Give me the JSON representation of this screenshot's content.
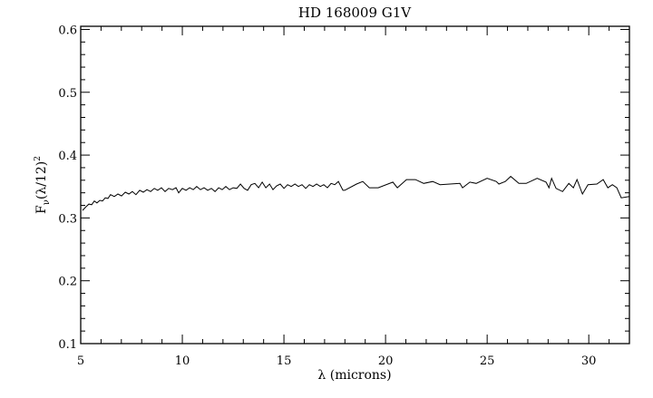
{
  "chart_data": {
    "type": "line",
    "title": "HD 168009 G1V",
    "xlabel": "λ (microns)",
    "ylabel": {
      "main": "F",
      "sub": "ν",
      "rest": "(λ/12)",
      "sup": "2"
    },
    "xlim": [
      5,
      32
    ],
    "ylim": [
      0.1,
      0.605
    ],
    "x_major_ticks": [
      5,
      10,
      15,
      20,
      25,
      30
    ],
    "x_tick_labels": [
      "5",
      "10",
      "15",
      "20",
      "25",
      "30"
    ],
    "x_minor_step": 1,
    "y_major_ticks": [
      0.1,
      0.2,
      0.3,
      0.4,
      0.5,
      0.6
    ],
    "y_tick_labels": [
      "0.1",
      "0.2",
      "0.3",
      "0.4",
      "0.5",
      "0.6"
    ],
    "y_minor_step": 0.02,
    "grid": false,
    "series": [
      {
        "name": "HD 168009",
        "color": "#000000",
        "x": [
          5.09,
          5.27,
          5.4,
          5.54,
          5.67,
          5.8,
          5.94,
          6.07,
          6.21,
          6.34,
          6.47,
          6.65,
          6.83,
          7.01,
          7.19,
          7.37,
          7.54,
          7.72,
          7.9,
          8.08,
          8.26,
          8.44,
          8.62,
          8.79,
          8.97,
          9.15,
          9.33,
          9.51,
          9.69,
          9.82,
          10.0,
          10.18,
          10.36,
          10.54,
          10.71,
          10.89,
          11.07,
          11.25,
          11.43,
          11.61,
          11.79,
          11.96,
          12.14,
          12.32,
          12.5,
          12.68,
          12.86,
          13.04,
          13.21,
          13.39,
          13.57,
          13.75,
          13.93,
          14.11,
          14.29,
          14.46,
          14.64,
          14.82,
          15.0,
          15.18,
          15.36,
          15.54,
          15.71,
          15.89,
          16.07,
          16.25,
          16.43,
          16.61,
          16.79,
          16.96,
          17.14,
          17.32,
          17.5,
          17.68,
          17.9,
          17.99,
          18.57,
          18.88,
          19.2,
          19.64,
          20.36,
          20.58,
          21.03,
          21.47,
          21.88,
          22.32,
          22.68,
          23.66,
          23.79,
          24.15,
          24.46,
          25.0,
          25.45,
          25.58,
          25.89,
          26.16,
          26.56,
          26.92,
          27.46,
          27.9,
          28.04,
          28.17,
          28.39,
          28.71,
          29.02,
          29.24,
          29.42,
          29.69,
          29.96,
          30.4,
          30.71,
          30.94,
          31.16,
          31.38,
          31.6,
          32.0
        ],
        "y": [
          0.312,
          0.318,
          0.322,
          0.321,
          0.327,
          0.324,
          0.328,
          0.327,
          0.332,
          0.331,
          0.337,
          0.334,
          0.338,
          0.335,
          0.341,
          0.338,
          0.342,
          0.337,
          0.344,
          0.341,
          0.345,
          0.342,
          0.347,
          0.344,
          0.348,
          0.342,
          0.347,
          0.345,
          0.348,
          0.34,
          0.347,
          0.344,
          0.348,
          0.345,
          0.35,
          0.345,
          0.348,
          0.344,
          0.347,
          0.342,
          0.348,
          0.345,
          0.35,
          0.345,
          0.348,
          0.347,
          0.354,
          0.347,
          0.344,
          0.353,
          0.355,
          0.348,
          0.357,
          0.348,
          0.354,
          0.345,
          0.351,
          0.354,
          0.347,
          0.353,
          0.35,
          0.354,
          0.35,
          0.353,
          0.347,
          0.353,
          0.35,
          0.354,
          0.35,
          0.353,
          0.348,
          0.355,
          0.353,
          0.358,
          0.344,
          0.344,
          0.354,
          0.358,
          0.348,
          0.348,
          0.357,
          0.348,
          0.361,
          0.361,
          0.355,
          0.358,
          0.353,
          0.355,
          0.348,
          0.357,
          0.355,
          0.363,
          0.358,
          0.354,
          0.358,
          0.366,
          0.355,
          0.355,
          0.363,
          0.357,
          0.348,
          0.363,
          0.347,
          0.342,
          0.355,
          0.348,
          0.361,
          0.338,
          0.353,
          0.354,
          0.361,
          0.348,
          0.353,
          0.348,
          0.332,
          0.334
        ]
      }
    ]
  }
}
